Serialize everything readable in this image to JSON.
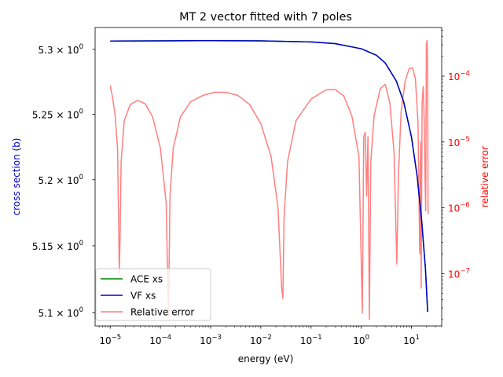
{
  "chart_data": {
    "type": "line",
    "title": "MT 2 vector fitted with 7 poles",
    "xlabel": "energy (eV)",
    "ylabel_left": "cross section (b)",
    "ylabel_right": "relative error",
    "x_scale": "log",
    "y_left_scale": "log",
    "y_right_scale": "log",
    "xlim": [
      5e-06,
      40
    ],
    "ylim_left": [
      5.09,
      5.317
    ],
    "ylim_right": [
      1.6e-08,
      0.00055
    ],
    "x_ticks": [
      {
        "value": 1e-05,
        "base": "10",
        "exp": "−5"
      },
      {
        "value": 0.0001,
        "base": "10",
        "exp": "−4"
      },
      {
        "value": 0.001,
        "base": "10",
        "exp": "−3"
      },
      {
        "value": 0.01,
        "base": "10",
        "exp": "−2"
      },
      {
        "value": 0.1,
        "base": "10",
        "exp": "−1"
      },
      {
        "value": 1,
        "base": "10",
        "exp": "0"
      },
      {
        "value": 10,
        "base": "10",
        "exp": "1"
      }
    ],
    "y_left_ticks": [
      {
        "value": 5.3,
        "mant": "5.3 × 10",
        "exp": "0"
      },
      {
        "value": 5.25,
        "mant": "5.25 × 10",
        "exp": "0"
      },
      {
        "value": 5.2,
        "mant": "5.2 × 10",
        "exp": "0"
      },
      {
        "value": 5.15,
        "mant": "5.15 × 10",
        "exp": "0"
      },
      {
        "value": 5.1,
        "mant": "5.1 × 10",
        "exp": "0"
      }
    ],
    "y_right_ticks": [
      {
        "value": 0.0001,
        "base": "10",
        "exp": "−4"
      },
      {
        "value": 1e-05,
        "base": "10",
        "exp": "−5"
      },
      {
        "value": 1e-06,
        "base": "10",
        "exp": "−6"
      },
      {
        "value": 1e-07,
        "base": "10",
        "exp": "−7"
      }
    ],
    "legend_position": "lower-left",
    "series": [
      {
        "name": "ACE xs",
        "color": "#008000",
        "axis": "left",
        "x": [
          1e-05,
          0.0001,
          0.001,
          0.01,
          0.1,
          0.3,
          1,
          2,
          3,
          5,
          7,
          10,
          13,
          16,
          19,
          21
        ],
        "y": [
          5.3065,
          5.3066,
          5.3068,
          5.3066,
          5.3058,
          5.3045,
          5.3005,
          5.2955,
          5.2895,
          5.2755,
          5.2595,
          5.2325,
          5.2025,
          5.1685,
          5.1325,
          5.1005
        ]
      },
      {
        "name": "VF xs",
        "color": "#0000cc",
        "axis": "left",
        "x": [
          1e-05,
          0.0001,
          0.001,
          0.01,
          0.1,
          0.3,
          1,
          2,
          3,
          5,
          7,
          10,
          13,
          16,
          19,
          21
        ],
        "y": [
          5.3065,
          5.3066,
          5.3068,
          5.3066,
          5.3058,
          5.3045,
          5.3005,
          5.2955,
          5.2895,
          5.2755,
          5.2595,
          5.2325,
          5.2025,
          5.1685,
          5.1325,
          5.1005
        ]
      },
      {
        "name": "Relative error",
        "color": "#ff7f7f",
        "axis": "right",
        "x": [
          1e-05,
          1.1e-05,
          1.25e-05,
          1.4e-05,
          1.52e-05,
          1.57e-05,
          1.65e-05,
          1.9e-05,
          2.5e-05,
          3.5e-05,
          5e-05,
          7e-05,
          0.0001,
          0.00013,
          0.000145,
          0.000155,
          0.00018,
          0.00025,
          0.0004,
          0.0007,
          0.0012,
          0.002,
          0.0035,
          0.006,
          0.01,
          0.016,
          0.022,
          0.026,
          0.0275,
          0.029,
          0.034,
          0.05,
          0.1,
          0.2,
          0.3,
          0.45,
          0.65,
          0.9,
          1.05,
          1.12,
          1.2,
          1.28,
          1.36,
          1.45,
          1.55,
          1.8,
          2.4,
          3,
          3.7,
          4.5,
          5.1,
          5.5,
          6.2,
          7.5,
          9,
          10.5,
          12,
          13.5,
          14.6,
          15.1,
          15.6,
          16.3,
          17.2,
          18,
          18.6,
          19.2,
          19.8,
          20.4,
          21,
          21.4
        ],
        "y": [
          7.2e-05,
          5e-05,
          2.6e-05,
          8e-06,
          1e-07,
          3.5e-07,
          5e-06,
          2.1e-05,
          3.7e-05,
          4.3e-05,
          3.8e-05,
          2.4e-05,
          8e-06,
          1.2e-06,
          2.2e-08,
          1.5e-06,
          8e-06,
          2.4e-05,
          4.1e-05,
          5.1e-05,
          5.7e-05,
          5.7e-05,
          5.1e-05,
          3.7e-05,
          1.9e-05,
          6e-06,
          1e-06,
          6e-08,
          4.2e-08,
          7e-07,
          5e-06,
          2.1e-05,
          4.5e-05,
          6.2e-05,
          6.3e-05,
          5e-05,
          2.5e-05,
          6e-06,
          2.5e-08,
          1.2e-05,
          1.4e-05,
          1.5e-06,
          1.2e-05,
          2e-08,
          5e-06,
          2.5e-05,
          6.5e-05,
          7.5e-05,
          4e-05,
          7e-06,
          1.4e-07,
          3e-06,
          2.8e-05,
          8.5e-05,
          0.00013,
          0.000135,
          9e-05,
          2e-05,
          2e-07,
          1e-05,
          6e-08,
          4e-05,
          7e-05,
          2e-05,
          3e-06,
          9e-07,
          0.0003,
          0.00035,
          0.00015,
          8e-07
        ]
      }
    ]
  }
}
